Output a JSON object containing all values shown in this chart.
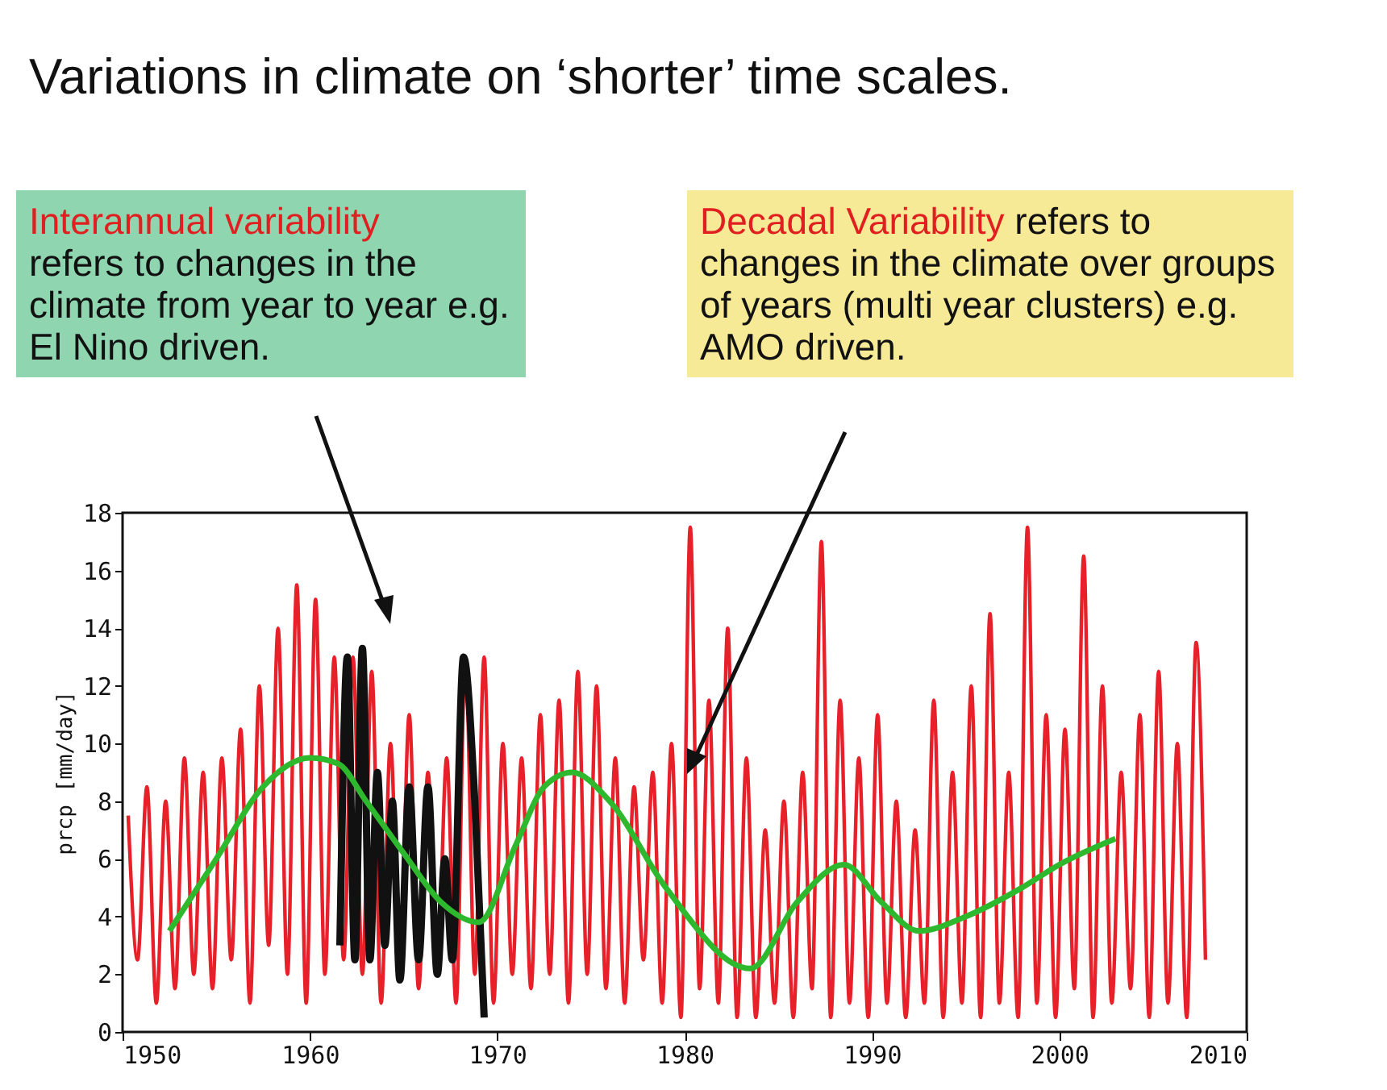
{
  "chart_data": {
    "type": "line",
    "title": "Variations in climate on ‘shorter’ time scales.",
    "ylabel": "prcp [mm/day]",
    "annotations": [
      "Interannual variability",
      "refers to changes in the climate from year to year e.g. El Nino driven.",
      "Decadal Variability",
      "refers to changes in the climate over groups of years (multi year clusters) e.g. AMO driven."
    ],
    "xlim": [
      1950,
      2010
    ],
    "xticks": [
      1950,
      1960,
      1970,
      1980,
      1990,
      2000,
      2010
    ],
    "ylim": [
      0,
      18
    ],
    "yticks": [
      0,
      2,
      4,
      6,
      8,
      10,
      12,
      14,
      16,
      18
    ],
    "grid": false,
    "series": [
      {
        "color": "#e8202a",
        "x": [
          1950.3,
          1950.8,
          1951.3,
          1951.8,
          1952.3,
          1952.8,
          1953.3,
          1953.8,
          1954.3,
          1954.8,
          1955.3,
          1955.8,
          1956.3,
          1956.8,
          1957.3,
          1957.8,
          1958.3,
          1958.8,
          1959.3,
          1959.8,
          1960.3,
          1960.8,
          1961.3,
          1961.8,
          1962.3,
          1962.8,
          1963.3,
          1963.8,
          1964.3,
          1964.8,
          1965.3,
          1965.8,
          1966.3,
          1966.8,
          1967.3,
          1967.8,
          1968.3,
          1968.8,
          1969.3,
          1969.8,
          1970.3,
          1970.8,
          1971.3,
          1971.8,
          1972.3,
          1972.8,
          1973.3,
          1973.8,
          1974.3,
          1974.8,
          1975.3,
          1975.8,
          1976.3,
          1976.8,
          1977.3,
          1977.8,
          1978.3,
          1978.8,
          1979.3,
          1979.8,
          1980.3,
          1980.8,
          1981.3,
          1981.8,
          1982.3,
          1982.8,
          1983.3,
          1983.8,
          1984.3,
          1984.8,
          1985.3,
          1985.8,
          1986.3,
          1986.8,
          1987.3,
          1987.8,
          1988.3,
          1988.8,
          1989.3,
          1989.8,
          1990.3,
          1990.8,
          1991.3,
          1991.8,
          1992.3,
          1992.8,
          1993.3,
          1993.8,
          1994.3,
          1994.8,
          1995.3,
          1995.8,
          1996.3,
          1996.8,
          1997.3,
          1997.8,
          1998.3,
          1998.8,
          1999.3,
          1999.8,
          2000.3,
          2000.8,
          2001.3,
          2001.8,
          2002.3,
          2002.8,
          2003.3,
          2003.8,
          2004.3,
          2004.8,
          2005.3,
          2005.8,
          2006.3,
          2006.8,
          2007.3,
          2007.8
        ],
        "values": [
          7.5,
          2.5,
          8.5,
          1,
          8,
          1.5,
          9.5,
          2,
          9,
          1.5,
          9.5,
          2.5,
          10.5,
          1,
          12,
          3,
          14,
          2,
          15.5,
          1,
          15,
          2,
          13,
          2.5,
          13,
          2,
          12.5,
          1,
          10,
          2,
          11,
          1.5,
          9,
          2,
          9.5,
          1,
          13,
          2,
          13,
          1,
          10,
          2,
          9.5,
          1.5,
          11,
          2,
          11.5,
          1,
          12.5,
          2,
          12,
          1.5,
          9.5,
          1,
          8.5,
          2.5,
          9,
          1,
          10,
          0.5,
          17.5,
          1.5,
          11.5,
          1,
          14,
          0.5,
          9.5,
          0.5,
          7,
          1,
          8,
          0.5,
          9,
          1.5,
          17,
          0.5,
          11.5,
          1,
          9.5,
          0.5,
          11,
          1,
          8,
          0.5,
          7,
          1,
          11.5,
          0.5,
          9,
          1,
          12,
          0.5,
          14.5,
          1,
          9,
          0.5,
          17.5,
          1,
          11,
          0.5,
          10.5,
          1.5,
          16.5,
          0.5,
          12,
          1,
          9,
          1.5,
          11,
          0.5,
          12.5,
          1,
          10,
          0.5,
          13.5,
          2.5
        ]
      },
      {
        "color": "#111111",
        "x": [
          1961.6,
          1962,
          1962.4,
          1962.8,
          1963.2,
          1963.6,
          1964,
          1964.4,
          1964.8,
          1965.3,
          1965.8,
          1966.3,
          1966.8,
          1967.2,
          1967.6,
          1968.2,
          1968.8,
          1969.3
        ],
        "values": [
          3,
          13,
          2.5,
          13.3,
          2.5,
          9,
          3,
          8,
          1.8,
          8.5,
          2.5,
          8.5,
          2,
          6,
          2.5,
          13,
          8,
          0.5
        ]
      },
      {
        "color": "#2db82d",
        "x": [
          1952.5,
          1955,
          1957.5,
          1960,
          1961.5,
          1963,
          1965,
          1967,
          1969,
          1971,
          1972.5,
          1974,
          1976,
          1979,
          1983.5,
          1986,
          1988.5,
          1990.5,
          1992.5,
          1995,
          1998,
          2000,
          2003
        ],
        "values": [
          3.5,
          6,
          8.5,
          9.5,
          9.3,
          8,
          6.2,
          4.5,
          3.8,
          6.5,
          8.5,
          9,
          8,
          5,
          2.2,
          4.5,
          5.8,
          4.5,
          3.5,
          4,
          5,
          5.8,
          6.7
        ]
      }
    ]
  }
}
